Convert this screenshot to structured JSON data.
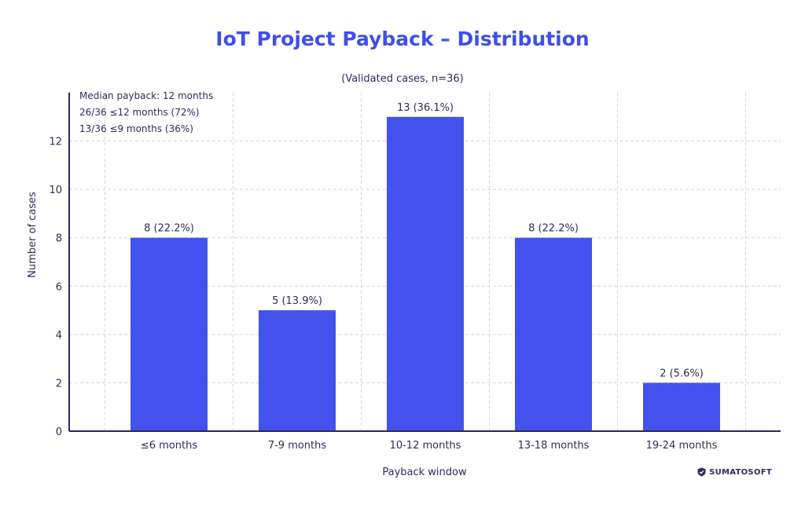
{
  "chart_data": {
    "type": "bar",
    "title": "IoT Project Payback – Distribution",
    "subtitle": "(Validated cases, n=36)",
    "xlabel": "Payback window",
    "ylabel": "Number of cases",
    "categories": [
      "≤6 months",
      "7-9 months",
      "10-12 months",
      "13-18 months",
      "19-24 months"
    ],
    "values": [
      8,
      5,
      13,
      8,
      2
    ],
    "data_labels": [
      "8 (22.2%)",
      "5 (13.9%)",
      "13 (36.1%)",
      "8 (22.2%)",
      "2 (5.6%)"
    ],
    "ylim": [
      0,
      14
    ],
    "yticks": [
      0,
      2,
      4,
      6,
      8,
      10,
      12
    ],
    "grid": true,
    "annotations": [
      "Median payback: 12 months",
      "26/36 ≤12 months (72%)",
      "13/36 ≤9 months (36%)"
    ],
    "colors": {
      "bar": "#4352ec",
      "title": "#3f4fe6",
      "text": "#2e2b5f",
      "axis": "#2a2860",
      "grid": "#d5d5dc"
    }
  },
  "logo": {
    "text": "SUMATOSOFT"
  }
}
